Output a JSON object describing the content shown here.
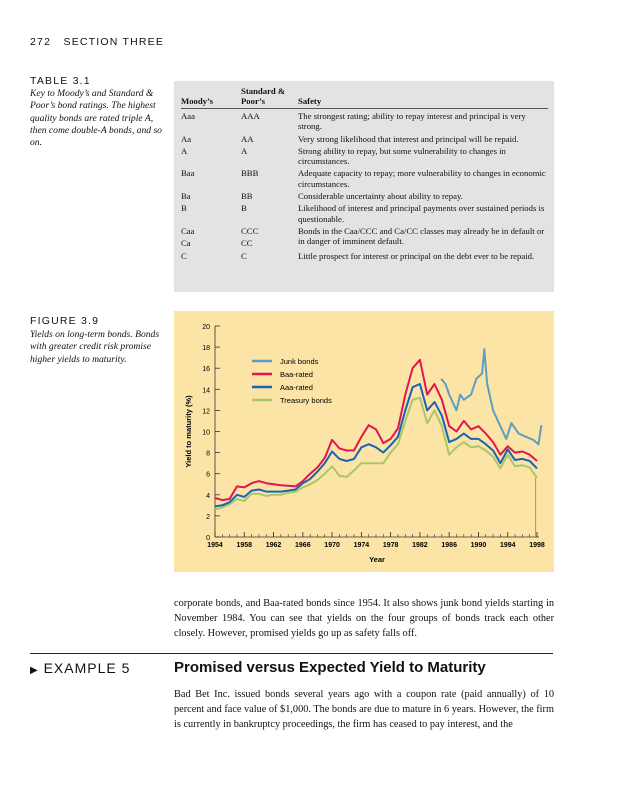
{
  "header": {
    "page_number": "272",
    "section": "SECTION THREE"
  },
  "table": {
    "label": "TABLE 3.1",
    "caption": "Key to Moody’s and Standard & Poor’s bond ratings. The highest quality bonds are rated triple A, then come double-A bonds, and so on.",
    "columns": [
      "Moody’s",
      "Standard & Poor’s",
      "Safety"
    ],
    "rows": [
      {
        "moodys": "Aaa",
        "sp": "AAA",
        "safety": "The strongest rating; ability to repay interest and principal is very strong."
      },
      {
        "moodys": "Aa",
        "sp": "AA",
        "safety": "Very strong likelihood that interest and principal will be repaid."
      },
      {
        "moodys": "A",
        "sp": "A",
        "safety": "Strong ability to repay, but some vulnerability to changes in circumstances."
      },
      {
        "moodys": "Baa",
        "sp": "BBB",
        "safety": "Adequate capacity to repay; more vulnerability to changes in economic circumstances."
      },
      {
        "moodys": "Ba",
        "sp": "BB",
        "safety": "Considerable uncertainty about ability to repay."
      },
      {
        "moodys": "B",
        "sp": "B",
        "safety": "Likelihood of interest and principal payments over sustained periods is questionable."
      },
      {
        "moodys": "Caa",
        "sp": "CCC",
        "safety": "Bonds in the Caa/CCC and Ca/CC classes may already be in default or in danger of imminent default."
      },
      {
        "moodys": "Ca",
        "sp": "CC",
        "safety": ""
      },
      {
        "moodys": "C",
        "sp": "C",
        "safety": "Little prospect for interest or principal on the debt ever to be repaid."
      }
    ]
  },
  "figure": {
    "label": "FIGURE 3.9",
    "caption": "Yields on long-term bonds. Bonds with greater credit risk promise higher yields to maturity."
  },
  "chart_data": {
    "type": "line",
    "xlabel": "Year",
    "ylabel": "Yield to maturity (%)",
    "xlim": [
      1954,
      1998.8
    ],
    "ylim": [
      0,
      20
    ],
    "xticks": [
      "1954",
      "1958",
      "1962",
      "1966",
      "1970",
      "1974",
      "1978",
      "1982",
      "1986",
      "1990",
      "1994",
      "1998"
    ],
    "yticks": [
      "0",
      "2",
      "4",
      "6",
      "8",
      "10",
      "12",
      "14",
      "16",
      "18",
      "20"
    ],
    "background": "#fce4a6",
    "grid": false,
    "legend": "top-left",
    "series": [
      {
        "name": "Junk bonds",
        "color": "#5b9fc4",
        "x": [
          1984.9,
          1985.5,
          1986,
          1987,
          1987.5,
          1988,
          1989,
          1989.7,
          1990.5,
          1990.8,
          1991.2,
          1992,
          1993,
          1993.8,
          1994.5,
          1995.5,
          1996.5,
          1997.5,
          1998.2,
          1998.6
        ],
        "y": [
          15.0,
          14.5,
          13.5,
          12.0,
          13.5,
          13.0,
          13.5,
          15.0,
          15.5,
          17.8,
          14.5,
          12.0,
          10.5,
          9.3,
          10.8,
          9.8,
          9.5,
          9.2,
          8.8,
          10.6
        ]
      },
      {
        "name": "Baa-rated",
        "color": "#e0174f",
        "x": [
          1954,
          1955,
          1956,
          1957,
          1958,
          1959,
          1960,
          1961,
          1962,
          1963,
          1964,
          1965,
          1966,
          1967,
          1968,
          1969,
          1970,
          1971,
          1972,
          1973,
          1974,
          1975,
          1976,
          1977,
          1978,
          1979,
          1980,
          1981,
          1982,
          1983,
          1984,
          1985,
          1986,
          1987,
          1988,
          1989,
          1990,
          1991,
          1992,
          1993,
          1994,
          1995,
          1996,
          1997,
          1998
        ],
        "y": [
          3.7,
          3.5,
          3.6,
          4.8,
          4.7,
          5.1,
          5.3,
          5.1,
          5.0,
          4.9,
          4.85,
          4.8,
          5.3,
          6.0,
          6.6,
          7.5,
          9.2,
          8.4,
          8.2,
          8.2,
          9.5,
          10.6,
          10.2,
          8.9,
          9.3,
          10.3,
          13.5,
          16.0,
          16.8,
          13.5,
          14.5,
          13.0,
          10.5,
          10.0,
          11.0,
          10.2,
          10.5,
          9.8,
          9.0,
          7.8,
          8.6,
          8.0,
          8.1,
          7.8,
          7.2
        ]
      },
      {
        "name": "Aaa-rated",
        "color": "#1a63b4",
        "x": [
          1954,
          1955,
          1956,
          1957,
          1958,
          1959,
          1960,
          1961,
          1962,
          1963,
          1964,
          1965,
          1966,
          1967,
          1968,
          1969,
          1970,
          1971,
          1972,
          1973,
          1974,
          1975,
          1976,
          1977,
          1978,
          1979,
          1980,
          1981,
          1982,
          1983,
          1984,
          1985,
          1986,
          1987,
          1988,
          1989,
          1990,
          1991,
          1992,
          1993,
          1994,
          1995,
          1996,
          1997,
          1998
        ],
        "y": [
          2.9,
          3.0,
          3.3,
          4.0,
          3.8,
          4.4,
          4.5,
          4.3,
          4.3,
          4.3,
          4.4,
          4.5,
          5.1,
          5.5,
          6.2,
          7.0,
          8.1,
          7.4,
          7.2,
          7.4,
          8.5,
          8.8,
          8.5,
          8.0,
          8.7,
          9.5,
          12.0,
          14.2,
          14.5,
          12.0,
          12.8,
          11.5,
          9.0,
          9.3,
          9.8,
          9.3,
          9.3,
          8.8,
          8.2,
          7.0,
          8.3,
          7.3,
          7.4,
          7.2,
          6.5
        ]
      },
      {
        "name": "Treasury bonds",
        "color": "#a9c76a",
        "x": [
          1954,
          1955,
          1956,
          1957,
          1958,
          1959,
          1960,
          1961,
          1962,
          1963,
          1964,
          1965,
          1966,
          1967,
          1968,
          1969,
          1970,
          1971,
          1972,
          1973,
          1974,
          1975,
          1976,
          1977,
          1978,
          1979,
          1980,
          1981,
          1982,
          1983,
          1984,
          1985,
          1986,
          1987,
          1988,
          1989,
          1990,
          1991,
          1992,
          1993,
          1994,
          1995,
          1996,
          1997,
          1998
        ],
        "y": [
          2.6,
          2.8,
          3.1,
          3.6,
          3.4,
          4.1,
          4.1,
          3.9,
          4.0,
          4.0,
          4.2,
          4.3,
          4.7,
          5.0,
          5.4,
          6.0,
          6.7,
          5.8,
          5.7,
          6.3,
          7.0,
          7.0,
          7.0,
          7.0,
          8.0,
          8.8,
          11.0,
          13.0,
          13.2,
          10.8,
          12.0,
          10.5,
          7.8,
          8.5,
          9.0,
          8.5,
          8.6,
          8.2,
          7.6,
          6.5,
          7.8,
          6.7,
          6.8,
          6.6,
          5.6
        ]
      }
    ]
  },
  "body": {
    "para1": "corporate bonds, and Baa-rated bonds since 1954. It also shows junk bond yields starting in November 1984. You can see that yields on the four groups of bonds track each other closely. However, promised yields go up as safety falls off.",
    "example_label": "EXAMPLE 5",
    "example_title": "Promised versus Expected Yield to Maturity",
    "para2": "Bad Bet Inc. issued bonds several years ago with a coupon rate (paid annually) of 10 percent and face value of $1,000. The bonds are due to mature in 6 years. However, the firm is currently in bankruptcy proceedings, the firm has ceased to pay interest, and the"
  }
}
